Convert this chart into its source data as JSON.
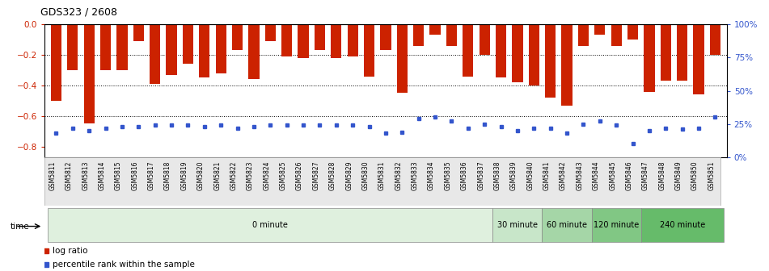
{
  "title": "GDS323 / 2608",
  "categories": [
    "GSM5811",
    "GSM5812",
    "GSM5813",
    "GSM5814",
    "GSM5815",
    "GSM5816",
    "GSM5817",
    "GSM5818",
    "GSM5819",
    "GSM5820",
    "GSM5821",
    "GSM5822",
    "GSM5823",
    "GSM5824",
    "GSM5825",
    "GSM5826",
    "GSM5827",
    "GSM5828",
    "GSM5829",
    "GSM5830",
    "GSM5831",
    "GSM5832",
    "GSM5833",
    "GSM5834",
    "GSM5835",
    "GSM5836",
    "GSM5837",
    "GSM5838",
    "GSM5839",
    "GSM5840",
    "GSM5841",
    "GSM5842",
    "GSM5843",
    "GSM5844",
    "GSM5845",
    "GSM5846",
    "GSM5847",
    "GSM5848",
    "GSM5849",
    "GSM5850",
    "GSM5851"
  ],
  "log_ratio": [
    -0.5,
    -0.3,
    -0.65,
    -0.3,
    -0.3,
    -0.11,
    -0.39,
    -0.33,
    -0.26,
    -0.35,
    -0.32,
    -0.17,
    -0.36,
    -0.11,
    -0.21,
    -0.22,
    -0.17,
    -0.22,
    -0.21,
    -0.34,
    -0.17,
    -0.45,
    -0.14,
    -0.07,
    -0.14,
    -0.34,
    -0.2,
    -0.35,
    -0.38,
    -0.4,
    -0.48,
    -0.53,
    -0.14,
    -0.07,
    -0.14,
    -0.1,
    -0.44,
    -0.37,
    -0.37,
    -0.46,
    -0.2
  ],
  "percentile": [
    18,
    22,
    20,
    22,
    23,
    23,
    24,
    24,
    24,
    23,
    24,
    22,
    23,
    24,
    24,
    24,
    24,
    24,
    24,
    23,
    18,
    19,
    29,
    30,
    27,
    22,
    25,
    23,
    20,
    22,
    22,
    18,
    25,
    27,
    24,
    10,
    20,
    22,
    21,
    22,
    30
  ],
  "time_groups": [
    {
      "label": "0 minute",
      "start": 0,
      "end": 27,
      "color": "#dff0de"
    },
    {
      "label": "30 minute",
      "start": 27,
      "end": 30,
      "color": "#c8e6c9"
    },
    {
      "label": "60 minute",
      "start": 30,
      "end": 33,
      "color": "#a5d6a7"
    },
    {
      "label": "120 minute",
      "start": 33,
      "end": 36,
      "color": "#81c784"
    },
    {
      "label": "240 minute",
      "start": 36,
      "end": 41,
      "color": "#66bb6a"
    }
  ],
  "bar_color": "#cc2200",
  "blue_color": "#3355cc",
  "ylim_left": [
    -0.87,
    0.0
  ],
  "ylim_right": [
    0,
    100
  ],
  "yticks_left": [
    0,
    -0.2,
    -0.4,
    -0.6,
    -0.8
  ],
  "yticks_right": [
    0,
    25,
    50,
    75,
    100
  ],
  "ylabel_left_color": "#cc2200",
  "ylabel_right_color": "#3355cc"
}
